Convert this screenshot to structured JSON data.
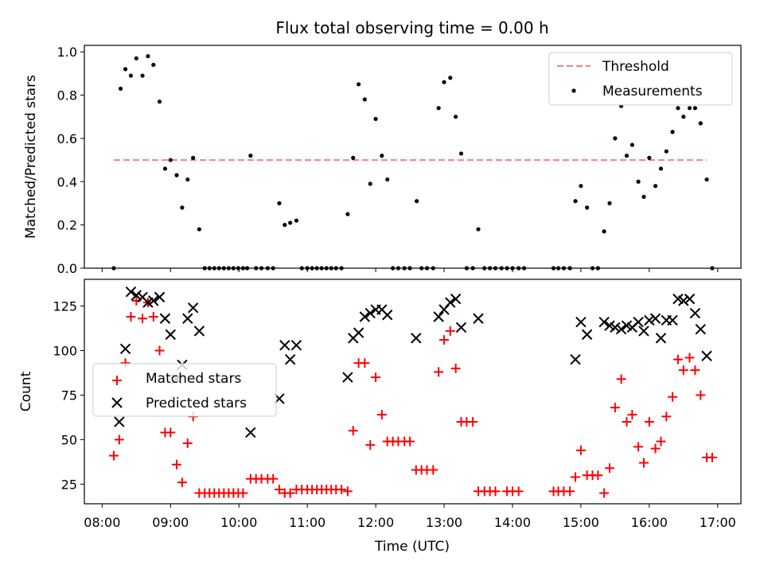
{
  "chart_data": {
    "title": "Flux total observing time = 0.00 h",
    "xlabel": "Time (UTC)",
    "x_ticks": [
      "08:00",
      "09:00",
      "10:00",
      "11:00",
      "12:00",
      "13:00",
      "14:00",
      "15:00",
      "16:00",
      "17:00"
    ],
    "xlim_hours": [
      7.74,
      17.34
    ],
    "top": {
      "type": "scatter",
      "ylabel": "Matched/Predicted stars",
      "ylim": [
        0,
        1.03
      ],
      "y_ticks": [
        "0.0",
        "0.2",
        "0.4",
        "0.6",
        "0.8",
        "1.0"
      ],
      "legend": {
        "position": "top-right",
        "threshold_label": "Threshold",
        "measurements_label": "Measurements"
      },
      "threshold": {
        "value": 0.5,
        "x_range_hours": [
          8.17,
          16.84
        ],
        "color": "#ff7b7b"
      },
      "measurements_color": "#000000",
      "measurements": [
        [
          8.17,
          0.0
        ],
        [
          8.27,
          0.83
        ],
        [
          8.34,
          0.92
        ],
        [
          8.42,
          0.89
        ],
        [
          8.5,
          0.97
        ],
        [
          8.59,
          0.89
        ],
        [
          8.67,
          0.98
        ],
        [
          8.75,
          0.94
        ],
        [
          8.84,
          0.77
        ],
        [
          8.92,
          0.46
        ],
        [
          9.0,
          0.5
        ],
        [
          9.09,
          0.43
        ],
        [
          9.17,
          0.28
        ],
        [
          9.25,
          0.41
        ],
        [
          9.33,
          0.51
        ],
        [
          9.42,
          0.18
        ],
        [
          9.5,
          0.0
        ],
        [
          9.57,
          0.0
        ],
        [
          9.64,
          0.0
        ],
        [
          9.71,
          0.0
        ],
        [
          9.78,
          0.0
        ],
        [
          9.85,
          0.0
        ],
        [
          9.92,
          0.0
        ],
        [
          9.99,
          0.0
        ],
        [
          10.06,
          0.0
        ],
        [
          10.12,
          0.0
        ],
        [
          10.17,
          0.52
        ],
        [
          10.25,
          0.0
        ],
        [
          10.33,
          0.0
        ],
        [
          10.42,
          0.0
        ],
        [
          10.5,
          0.0
        ],
        [
          10.59,
          0.3
        ],
        [
          10.67,
          0.2
        ],
        [
          10.75,
          0.21
        ],
        [
          10.84,
          0.22
        ],
        [
          10.92,
          0.0
        ],
        [
          11.0,
          0.0
        ],
        [
          11.07,
          0.0
        ],
        [
          11.14,
          0.0
        ],
        [
          11.21,
          0.0
        ],
        [
          11.28,
          0.0
        ],
        [
          11.35,
          0.0
        ],
        [
          11.42,
          0.0
        ],
        [
          11.5,
          0.0
        ],
        [
          11.59,
          0.25
        ],
        [
          11.67,
          0.51
        ],
        [
          11.75,
          0.85
        ],
        [
          11.84,
          0.78
        ],
        [
          11.92,
          0.39
        ],
        [
          12.0,
          0.69
        ],
        [
          12.09,
          0.52
        ],
        [
          12.17,
          0.41
        ],
        [
          12.25,
          0.0
        ],
        [
          12.33,
          0.0
        ],
        [
          12.42,
          0.0
        ],
        [
          12.5,
          0.0
        ],
        [
          12.6,
          0.31
        ],
        [
          12.67,
          0.0
        ],
        [
          12.75,
          0.0
        ],
        [
          12.84,
          0.0
        ],
        [
          12.92,
          0.74
        ],
        [
          13.0,
          0.86
        ],
        [
          13.09,
          0.88
        ],
        [
          13.17,
          0.7
        ],
        [
          13.25,
          0.53
        ],
        [
          13.33,
          0.0
        ],
        [
          13.42,
          0.0
        ],
        [
          13.5,
          0.18
        ],
        [
          13.59,
          0.0
        ],
        [
          13.67,
          0.0
        ],
        [
          13.75,
          0.0
        ],
        [
          13.84,
          0.0
        ],
        [
          13.92,
          0.0
        ],
        [
          14.0,
          0.0
        ],
        [
          14.09,
          0.0
        ],
        [
          14.17,
          0.0
        ],
        [
          14.6,
          0.0
        ],
        [
          14.67,
          0.0
        ],
        [
          14.75,
          0.0
        ],
        [
          14.84,
          0.0
        ],
        [
          14.92,
          0.31
        ],
        [
          15.0,
          0.38
        ],
        [
          15.09,
          0.28
        ],
        [
          15.17,
          0.0
        ],
        [
          15.25,
          0.0
        ],
        [
          15.34,
          0.17
        ],
        [
          15.42,
          0.3
        ],
        [
          15.5,
          0.6
        ],
        [
          15.59,
          0.75
        ],
        [
          15.67,
          0.52
        ],
        [
          15.75,
          0.57
        ],
        [
          15.84,
          0.4
        ],
        [
          15.92,
          0.33
        ],
        [
          16.0,
          0.51
        ],
        [
          16.09,
          0.38
        ],
        [
          16.17,
          0.46
        ],
        [
          16.25,
          0.54
        ],
        [
          16.34,
          0.63
        ],
        [
          16.42,
          0.74
        ],
        [
          16.5,
          0.7
        ],
        [
          16.59,
          0.74
        ],
        [
          16.67,
          0.74
        ],
        [
          16.75,
          0.67
        ],
        [
          16.84,
          0.41
        ],
        [
          16.92,
          0.0
        ]
      ]
    },
    "bottom": {
      "type": "scatter",
      "ylabel": "Count",
      "ylim": [
        14,
        140
      ],
      "y_ticks": [
        "25",
        "50",
        "75",
        "100",
        "125"
      ],
      "legend": {
        "position": "center-left",
        "matched_label": "Matched stars",
        "predicted_label": "Predicted stars"
      },
      "matched_color": "#ff0000",
      "predicted_color": "#000000",
      "matched": [
        [
          8.17,
          41
        ],
        [
          8.25,
          50
        ],
        [
          8.34,
          93
        ],
        [
          8.42,
          119
        ],
        [
          8.5,
          128
        ],
        [
          8.59,
          118
        ],
        [
          8.67,
          127
        ],
        [
          8.75,
          119
        ],
        [
          8.84,
          100
        ],
        [
          8.92,
          54
        ],
        [
          9.0,
          54
        ],
        [
          9.09,
          36
        ],
        [
          9.17,
          26
        ],
        [
          9.25,
          48
        ],
        [
          9.33,
          63
        ],
        [
          9.42,
          20
        ],
        [
          9.5,
          20
        ],
        [
          9.57,
          20
        ],
        [
          9.64,
          20
        ],
        [
          9.71,
          20
        ],
        [
          9.78,
          20
        ],
        [
          9.85,
          20
        ],
        [
          9.92,
          20
        ],
        [
          9.99,
          20
        ],
        [
          10.06,
          20
        ],
        [
          10.17,
          28
        ],
        [
          10.25,
          28
        ],
        [
          10.33,
          28
        ],
        [
          10.42,
          28
        ],
        [
          10.5,
          28
        ],
        [
          10.59,
          22
        ],
        [
          10.67,
          20
        ],
        [
          10.75,
          20
        ],
        [
          10.84,
          22
        ],
        [
          10.92,
          22
        ],
        [
          11.0,
          22
        ],
        [
          11.07,
          22
        ],
        [
          11.14,
          22
        ],
        [
          11.21,
          22
        ],
        [
          11.28,
          22
        ],
        [
          11.35,
          22
        ],
        [
          11.42,
          22
        ],
        [
          11.5,
          22
        ],
        [
          11.59,
          21
        ],
        [
          11.67,
          55
        ],
        [
          11.75,
          93
        ],
        [
          11.84,
          93
        ],
        [
          11.92,
          47
        ],
        [
          12.0,
          85
        ],
        [
          12.09,
          64
        ],
        [
          12.17,
          49
        ],
        [
          12.25,
          49
        ],
        [
          12.33,
          49
        ],
        [
          12.42,
          49
        ],
        [
          12.5,
          49
        ],
        [
          12.59,
          33
        ],
        [
          12.67,
          33
        ],
        [
          12.75,
          33
        ],
        [
          12.84,
          33
        ],
        [
          12.92,
          88
        ],
        [
          13.0,
          106
        ],
        [
          13.09,
          111
        ],
        [
          13.17,
          90
        ],
        [
          13.25,
          60
        ],
        [
          13.33,
          60
        ],
        [
          13.42,
          60
        ],
        [
          13.5,
          21
        ],
        [
          13.59,
          21
        ],
        [
          13.67,
          21
        ],
        [
          13.75,
          21
        ],
        [
          13.92,
          21
        ],
        [
          14.0,
          21
        ],
        [
          14.09,
          21
        ],
        [
          14.6,
          21
        ],
        [
          14.67,
          21
        ],
        [
          14.75,
          21
        ],
        [
          14.84,
          21
        ],
        [
          14.92,
          29
        ],
        [
          15.0,
          44
        ],
        [
          15.09,
          30
        ],
        [
          15.17,
          30
        ],
        [
          15.25,
          30
        ],
        [
          15.34,
          20
        ],
        [
          15.42,
          34
        ],
        [
          15.5,
          68
        ],
        [
          15.59,
          84
        ],
        [
          15.67,
          60
        ],
        [
          15.75,
          64
        ],
        [
          15.84,
          46
        ],
        [
          15.92,
          37
        ],
        [
          16.0,
          60
        ],
        [
          16.09,
          45
        ],
        [
          16.17,
          49
        ],
        [
          16.25,
          63
        ],
        [
          16.34,
          74
        ],
        [
          16.42,
          95
        ],
        [
          16.5,
          89
        ],
        [
          16.59,
          96
        ],
        [
          16.67,
          89
        ],
        [
          16.75,
          75
        ],
        [
          16.84,
          40
        ],
        [
          16.92,
          40
        ]
      ],
      "predicted": [
        [
          8.25,
          60
        ],
        [
          8.34,
          101
        ],
        [
          8.42,
          133
        ],
        [
          8.5,
          131
        ],
        [
          8.59,
          130
        ],
        [
          8.67,
          127
        ],
        [
          8.75,
          128
        ],
        [
          8.84,
          130
        ],
        [
          8.92,
          118
        ],
        [
          9.0,
          109
        ],
        [
          9.09,
          84
        ],
        [
          9.17,
          92
        ],
        [
          9.25,
          118
        ],
        [
          9.33,
          124
        ],
        [
          9.42,
          111
        ],
        [
          10.17,
          54
        ],
        [
          10.59,
          73
        ],
        [
          10.67,
          103
        ],
        [
          10.75,
          95
        ],
        [
          10.84,
          103
        ],
        [
          11.59,
          85
        ],
        [
          11.67,
          107
        ],
        [
          11.75,
          110
        ],
        [
          11.84,
          119
        ],
        [
          11.92,
          121
        ],
        [
          12.0,
          123
        ],
        [
          12.09,
          123
        ],
        [
          12.17,
          120
        ],
        [
          12.59,
          107
        ],
        [
          12.92,
          119
        ],
        [
          13.0,
          123
        ],
        [
          13.09,
          127
        ],
        [
          13.17,
          129
        ],
        [
          13.25,
          113
        ],
        [
          13.5,
          118
        ],
        [
          14.92,
          95
        ],
        [
          15.0,
          116
        ],
        [
          15.09,
          109
        ],
        [
          15.34,
          116
        ],
        [
          15.42,
          114
        ],
        [
          15.5,
          113
        ],
        [
          15.59,
          112
        ],
        [
          15.67,
          114
        ],
        [
          15.75,
          113
        ],
        [
          15.84,
          116
        ],
        [
          15.92,
          111
        ],
        [
          16.0,
          117
        ],
        [
          16.09,
          118
        ],
        [
          16.17,
          107
        ],
        [
          16.25,
          117
        ],
        [
          16.34,
          117
        ],
        [
          16.42,
          129
        ],
        [
          16.5,
          128
        ],
        [
          16.59,
          129
        ],
        [
          16.67,
          121
        ],
        [
          16.75,
          112
        ],
        [
          16.84,
          97
        ]
      ]
    }
  }
}
